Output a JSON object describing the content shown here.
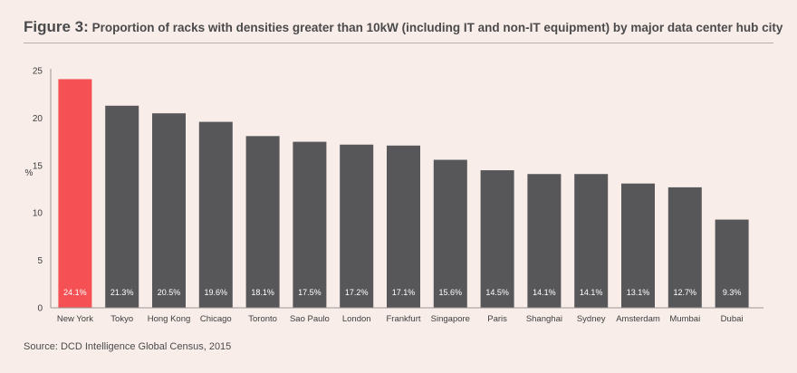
{
  "header": {
    "figure_label": "Figure 3:",
    "figure_text": "Proportion of racks with densities greater than 10kW (including IT and non-IT equipment) by major data center hub city"
  },
  "source": "Source: DCD Intelligence Global Census, 2015",
  "colors": {
    "highlight": "#f55154",
    "bar": "#57575a",
    "axis": "#9c9694",
    "background": "#f8ede8"
  },
  "chart_data": {
    "type": "bar",
    "title": "Proportion of racks with densities greater than 10kW (including IT and non-IT equipment) by major data center hub city",
    "xlabel": "",
    "ylabel": "%",
    "ylim": [
      0,
      25
    ],
    "yticks": [
      0,
      5,
      10,
      15,
      20,
      25
    ],
    "grid": false,
    "categories": [
      "New York",
      "Tokyo",
      "Hong Kong",
      "Chicago",
      "Toronto",
      "Sao Paulo",
      "London",
      "Frankfurt",
      "Singapore",
      "Paris",
      "Shanghai",
      "Sydney",
      "Amsterdam",
      "Mumbai",
      "Dubai"
    ],
    "values": [
      24.1,
      21.3,
      20.5,
      19.6,
      18.1,
      17.5,
      17.2,
      17.1,
      15.6,
      14.5,
      14.1,
      14.1,
      13.1,
      12.7,
      9.3
    ],
    "data_labels": [
      "24.1%",
      "21.3%",
      "20.5%",
      "19.6%",
      "18.1%",
      "17.5%",
      "17.2%",
      "17.1%",
      "15.6%",
      "14.5%",
      "14.1%",
      "14.1%",
      "13.1%",
      "12.7%",
      "9.3%"
    ],
    "highlight_index": 0
  }
}
